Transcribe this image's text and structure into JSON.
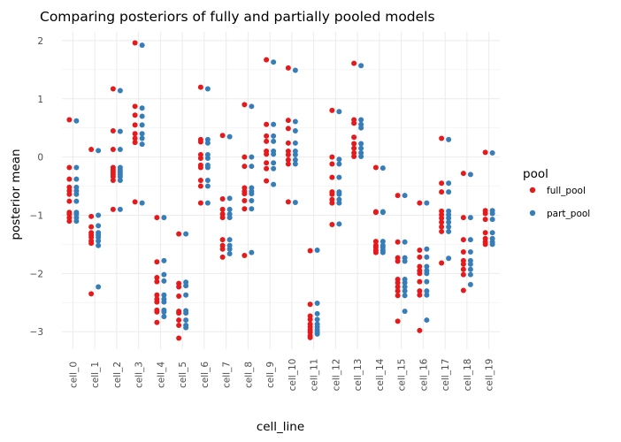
{
  "chart_data": {
    "type": "scatter",
    "title": "Comparing posteriors of fully and partially pooled models",
    "xlabel": "cell_line",
    "ylabel": "posterior mean",
    "categories": [
      "cell_0",
      "cell_1",
      "cell_2",
      "cell_3",
      "cell_4",
      "cell_5",
      "cell_6",
      "cell_7",
      "cell_8",
      "cell_9",
      "cell_10",
      "cell_11",
      "cell_12",
      "cell_13",
      "cell_14",
      "cell_15",
      "cell_16",
      "cell_17",
      "cell_18",
      "cell_19"
    ],
    "ylim": [
      -3.3,
      2.15
    ],
    "yticks": [
      -3,
      -2,
      -1,
      0,
      1,
      2
    ],
    "ytick_labels": [
      "−3",
      "−2",
      "−1",
      "0",
      "1",
      "2"
    ],
    "grid": true,
    "legend": {
      "title": "pool",
      "position": "right",
      "entries": [
        "full_pool",
        "part_pool"
      ]
    },
    "colors": {
      "full_pool": "#e41a1c",
      "part_pool": "#377eb8"
    },
    "series": [
      {
        "name": "full_pool",
        "values": [
          [
            0.64,
            -0.18,
            -0.38,
            -0.52,
            -0.58,
            -0.64,
            -0.76,
            -0.95,
            -0.98,
            -1.04,
            -1.1
          ],
          [
            0.13,
            -1.02,
            -1.2,
            -1.3,
            -1.34,
            -1.38,
            -1.44,
            -1.48,
            -2.35
          ],
          [
            1.17,
            0.45,
            0.13,
            -0.18,
            -0.22,
            -0.26,
            -0.3,
            -0.34,
            -0.4,
            -0.9
          ],
          [
            1.96,
            0.87,
            0.72,
            0.55,
            0.4,
            0.32,
            0.25,
            -0.77
          ],
          [
            -1.04,
            -1.8,
            -2.07,
            -2.14,
            -2.37,
            -2.44,
            -2.49,
            -2.63,
            -2.66,
            -2.84
          ],
          [
            -1.32,
            -2.17,
            -2.23,
            -2.39,
            -2.65,
            -2.68,
            -2.8,
            -2.89,
            -3.11
          ],
          [
            1.2,
            0.3,
            0.26,
            0.04,
            -0.02,
            -0.14,
            -0.18,
            -0.4,
            -0.5,
            -0.79
          ],
          [
            0.37,
            -0.72,
            -0.9,
            -0.98,
            -1.04,
            -1.42,
            -1.52,
            -1.58,
            -1.72
          ],
          [
            0.9,
            0.0,
            -0.16,
            -0.53,
            -0.59,
            -0.63,
            -0.75,
            -0.89,
            -1.69
          ],
          [
            1.67,
            0.56,
            0.36,
            0.27,
            0.1,
            0.05,
            -0.1,
            -0.2,
            -0.41
          ],
          [
            1.53,
            0.63,
            0.49,
            0.24,
            0.1,
            0.04,
            -0.05,
            -0.12,
            -0.77
          ],
          [
            -1.61,
            -2.53,
            -2.73,
            -2.79,
            -2.87,
            -2.92,
            -2.97,
            -3.01,
            -3.07,
            -3.1
          ],
          [
            0.8,
            0.0,
            -0.12,
            -0.35,
            -0.6,
            -0.64,
            -0.73,
            -0.79,
            -1.16
          ],
          [
            1.61,
            0.64,
            0.58,
            0.34,
            0.23,
            0.15,
            0.07,
            0.01
          ],
          [
            -0.18,
            -0.94,
            -0.95,
            -1.45,
            -1.52,
            -1.55,
            -1.6,
            -1.64
          ],
          [
            -0.66,
            -1.46,
            -1.73,
            -1.79,
            -2.1,
            -2.16,
            -2.23,
            -2.3,
            -2.38,
            -2.82
          ],
          [
            -0.79,
            -1.6,
            -1.72,
            -1.88,
            -1.95,
            -2.0,
            -2.14,
            -2.3,
            -2.37,
            -2.98
          ],
          [
            0.32,
            -0.45,
            -0.6,
            -0.93,
            -0.99,
            -1.05,
            -1.12,
            -1.2,
            -1.28,
            -1.82
          ],
          [
            -0.28,
            -1.04,
            -1.42,
            -1.63,
            -1.78,
            -1.84,
            -1.93,
            -2.02,
            -2.29
          ],
          [
            0.08,
            -0.92,
            -0.97,
            -1.07,
            -1.3,
            -1.4,
            -1.46,
            -1.5
          ]
        ]
      },
      {
        "name": "part_pool",
        "values": [
          [
            0.62,
            -0.18,
            -0.38,
            -0.52,
            -0.58,
            -0.64,
            -0.76,
            -0.95,
            -0.98,
            -1.04,
            -1.1
          ],
          [
            0.11,
            -1.0,
            -1.18,
            -1.3,
            -1.34,
            -1.38,
            -1.44,
            -1.52,
            -2.23
          ],
          [
            1.14,
            0.44,
            0.13,
            -0.18,
            -0.22,
            -0.26,
            -0.3,
            -0.34,
            -0.4,
            -0.9
          ],
          [
            1.92,
            0.84,
            0.7,
            0.55,
            0.4,
            0.32,
            0.22,
            -0.79
          ],
          [
            -1.04,
            -1.78,
            -2.02,
            -2.13,
            -2.37,
            -2.44,
            -2.49,
            -2.63,
            -2.66,
            -2.74
          ],
          [
            -1.32,
            -2.15,
            -2.21,
            -2.37,
            -2.64,
            -2.68,
            -2.8,
            -2.89,
            -2.93
          ],
          [
            1.17,
            0.3,
            0.24,
            0.04,
            -0.02,
            -0.14,
            -0.18,
            -0.4,
            -0.5,
            -0.79
          ],
          [
            0.35,
            -0.71,
            -0.9,
            -0.98,
            -1.04,
            -1.42,
            -1.52,
            -1.58,
            -1.66
          ],
          [
            0.87,
            0.0,
            -0.16,
            -0.53,
            -0.59,
            -0.63,
            -0.75,
            -0.89,
            -1.64
          ],
          [
            1.63,
            0.56,
            0.36,
            0.27,
            0.1,
            0.05,
            -0.1,
            -0.2,
            -0.47
          ],
          [
            1.49,
            0.61,
            0.45,
            0.24,
            0.1,
            0.04,
            -0.05,
            -0.12,
            -0.78
          ],
          [
            -1.6,
            -2.51,
            -2.69,
            -2.79,
            -2.87,
            -2.92,
            -2.97,
            -3.01,
            -3.04
          ],
          [
            0.78,
            -0.04,
            -0.12,
            -0.35,
            -0.6,
            -0.64,
            -0.73,
            -0.79,
            -1.15
          ],
          [
            1.57,
            0.64,
            0.56,
            0.5,
            0.23,
            0.15,
            0.07,
            0.01
          ],
          [
            -0.19,
            -0.94,
            -0.95,
            -1.45,
            -1.52,
            -1.55,
            -1.6,
            -1.64
          ],
          [
            -0.66,
            -1.46,
            -1.73,
            -1.79,
            -2.1,
            -2.16,
            -2.23,
            -2.3,
            -2.38,
            -2.65
          ],
          [
            -0.79,
            -1.58,
            -1.72,
            -1.88,
            -1.95,
            -2.0,
            -2.14,
            -2.3,
            -2.37,
            -2.8
          ],
          [
            0.3,
            -0.45,
            -0.6,
            -0.93,
            -0.99,
            -1.05,
            -1.12,
            -1.2,
            -1.28,
            -1.74
          ],
          [
            -0.3,
            -1.04,
            -1.42,
            -1.63,
            -1.78,
            -1.84,
            -1.93,
            -2.02,
            -2.19
          ],
          [
            0.07,
            -0.92,
            -0.97,
            -1.07,
            -1.3,
            -1.4,
            -1.46,
            -1.5
          ]
        ]
      }
    ]
  }
}
